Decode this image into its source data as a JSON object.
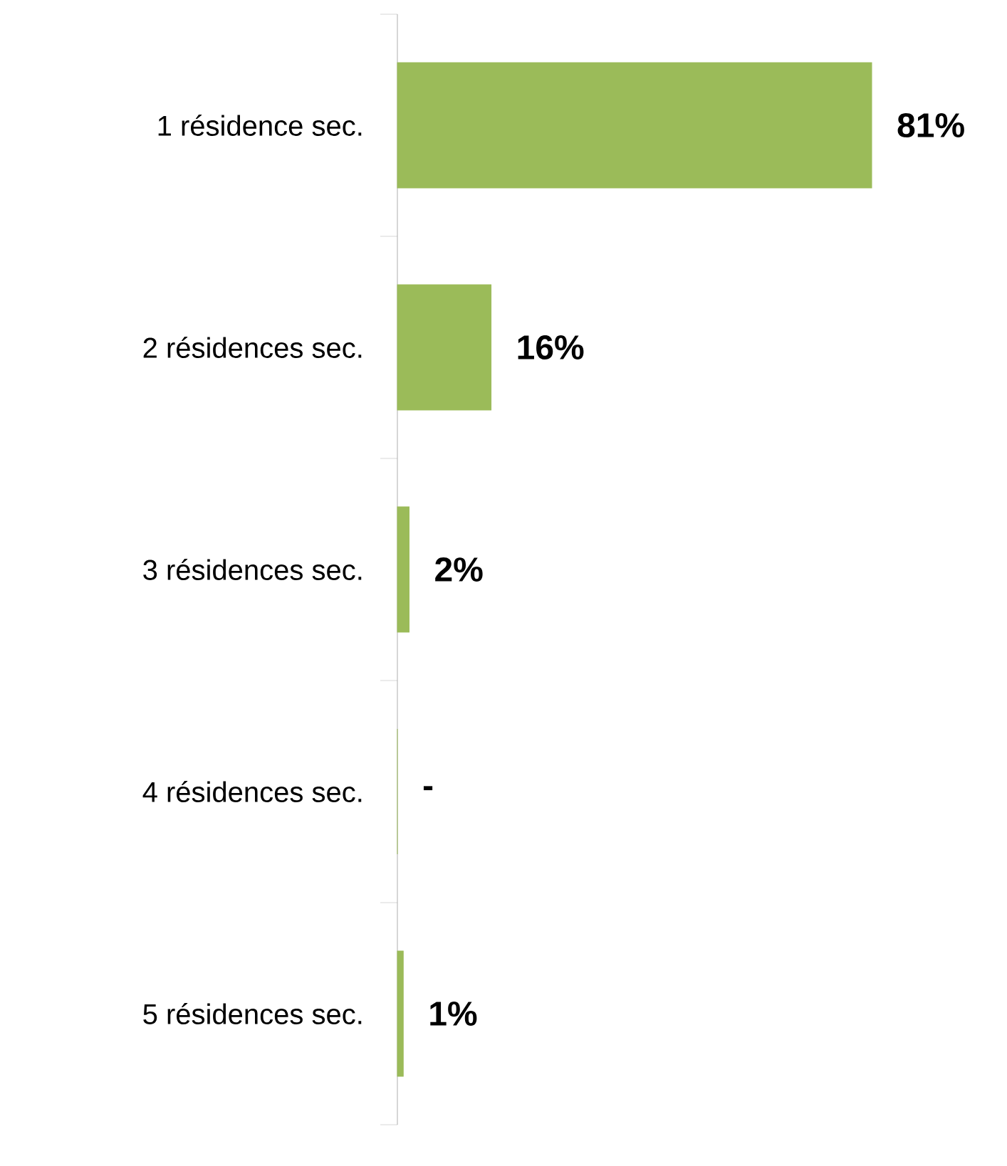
{
  "chart_data": {
    "type": "bar",
    "orientation": "horizontal",
    "categories": [
      "1 résidence sec.",
      "2 résidences sec.",
      "3 résidences sec.",
      "4 résidences sec.",
      "5 résidences sec."
    ],
    "values": [
      81,
      16,
      2,
      0,
      1
    ],
    "value_labels": [
      "81%",
      "16%",
      "2%",
      "-",
      "1%"
    ],
    "color": "#9bbb59"
  }
}
